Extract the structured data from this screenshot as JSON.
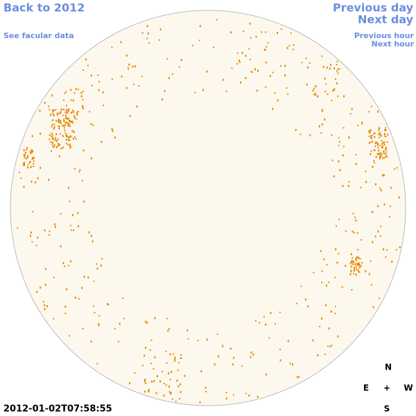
{
  "nav": {
    "back": "Back to 2012",
    "facular": "See facular data",
    "previous_day": "Previous day",
    "next_day": "Next day",
    "previous_hour": "Previous hour",
    "next_hour": "Next hour"
  },
  "compass": {
    "north": "N",
    "east": "E",
    "center": "+",
    "west": "W",
    "south": "S"
  },
  "timestamp": "2012-01-02T07:58:55"
}
